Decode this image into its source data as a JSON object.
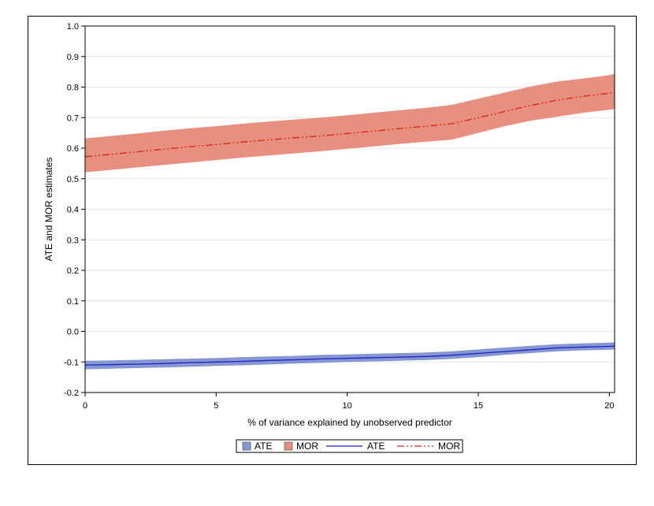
{
  "chart_data": {
    "type": "line",
    "xlabel": "% of variance explained by unobserved predictor",
    "ylabel": "ATE and MOR estimates",
    "xlim": [
      0,
      20.2
    ],
    "ylim": [
      -0.2,
      1.0
    ],
    "x_ticks": [
      0,
      5,
      10,
      15,
      20
    ],
    "x_tick_labels": [
      "0",
      "5",
      "10",
      "15",
      "20"
    ],
    "y_ticks": [
      -0.2,
      -0.1,
      0.0,
      0.1,
      0.2,
      0.3,
      0.4,
      0.5,
      0.6,
      0.7,
      0.8,
      0.9,
      1.0
    ],
    "y_tick_labels": [
      "-0.2",
      "-0.1",
      "0.0",
      "0.1",
      "0.2",
      "0.3",
      "0.4",
      "0.5",
      "0.6",
      "0.7",
      "0.8",
      "0.9",
      "1.0"
    ],
    "grid": "horizontal",
    "legend_position": "bottom",
    "x": [
      0,
      1,
      2,
      3,
      4,
      5,
      6,
      7,
      8,
      9,
      10,
      11,
      12,
      13,
      14,
      15,
      16,
      17,
      18,
      19,
      20,
      20.2
    ],
    "series": [
      {
        "name": "ATE",
        "style": "solid",
        "line_color": "#1f1fcc",
        "band_color": "#8497d1",
        "values": [
          -0.11,
          -0.109,
          -0.107,
          -0.105,
          -0.102,
          -0.1,
          -0.098,
          -0.095,
          -0.093,
          -0.09,
          -0.088,
          -0.086,
          -0.084,
          -0.082,
          -0.078,
          -0.072,
          -0.066,
          -0.06,
          -0.054,
          -0.051,
          -0.049,
          -0.048
        ],
        "lower": [
          -0.124,
          -0.122,
          -0.12,
          -0.118,
          -0.116,
          -0.113,
          -0.111,
          -0.108,
          -0.105,
          -0.103,
          -0.1,
          -0.098,
          -0.096,
          -0.094,
          -0.09,
          -0.084,
          -0.077,
          -0.071,
          -0.065,
          -0.062,
          -0.06,
          -0.059
        ],
        "upper": [
          -0.096,
          -0.095,
          -0.093,
          -0.091,
          -0.089,
          -0.087,
          -0.084,
          -0.082,
          -0.08,
          -0.077,
          -0.075,
          -0.073,
          -0.071,
          -0.069,
          -0.065,
          -0.059,
          -0.053,
          -0.047,
          -0.042,
          -0.039,
          -0.037,
          -0.036
        ]
      },
      {
        "name": "MOR",
        "style": "dash-dot-dot",
        "line_color": "#d62020",
        "band_color": "#e8907f",
        "values": [
          0.572,
          0.58,
          0.588,
          0.597,
          0.605,
          0.612,
          0.62,
          0.627,
          0.634,
          0.64,
          0.648,
          0.656,
          0.664,
          0.672,
          0.68,
          0.7,
          0.72,
          0.74,
          0.757,
          0.77,
          0.78,
          0.783
        ],
        "lower": [
          0.521,
          0.529,
          0.537,
          0.545,
          0.553,
          0.561,
          0.569,
          0.576,
          0.583,
          0.59,
          0.598,
          0.606,
          0.614,
          0.621,
          0.628,
          0.65,
          0.672,
          0.69,
          0.703,
          0.716,
          0.726,
          0.728
        ],
        "upper": [
          0.632,
          0.64,
          0.648,
          0.657,
          0.665,
          0.672,
          0.68,
          0.687,
          0.694,
          0.7,
          0.708,
          0.716,
          0.724,
          0.732,
          0.742,
          0.762,
          0.782,
          0.802,
          0.818,
          0.828,
          0.839,
          0.843
        ]
      }
    ],
    "legend": [
      {
        "label": "ATE",
        "kind": "band",
        "series": 0
      },
      {
        "label": "MOR",
        "kind": "band",
        "series": 1
      },
      {
        "label": "ATE",
        "kind": "line",
        "series": 0
      },
      {
        "label": "MOR",
        "kind": "line",
        "series": 1
      }
    ]
  }
}
